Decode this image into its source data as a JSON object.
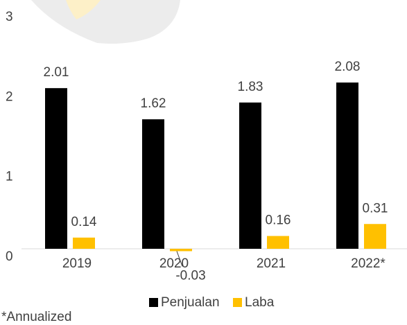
{
  "chart_data": {
    "type": "bar",
    "categories": [
      "2019",
      "2020",
      "2021",
      "2022*"
    ],
    "series": [
      {
        "name": "Penjualan",
        "color": "#000000",
        "values": [
          2.01,
          1.62,
          1.83,
          2.08
        ]
      },
      {
        "name": "Laba",
        "color": "#FFC000",
        "values": [
          0.14,
          -0.03,
          0.16,
          0.31
        ]
      }
    ],
    "ylim": [
      0,
      3
    ],
    "yticks": [
      0,
      1,
      2,
      3
    ],
    "footnote": "*Annualized"
  }
}
